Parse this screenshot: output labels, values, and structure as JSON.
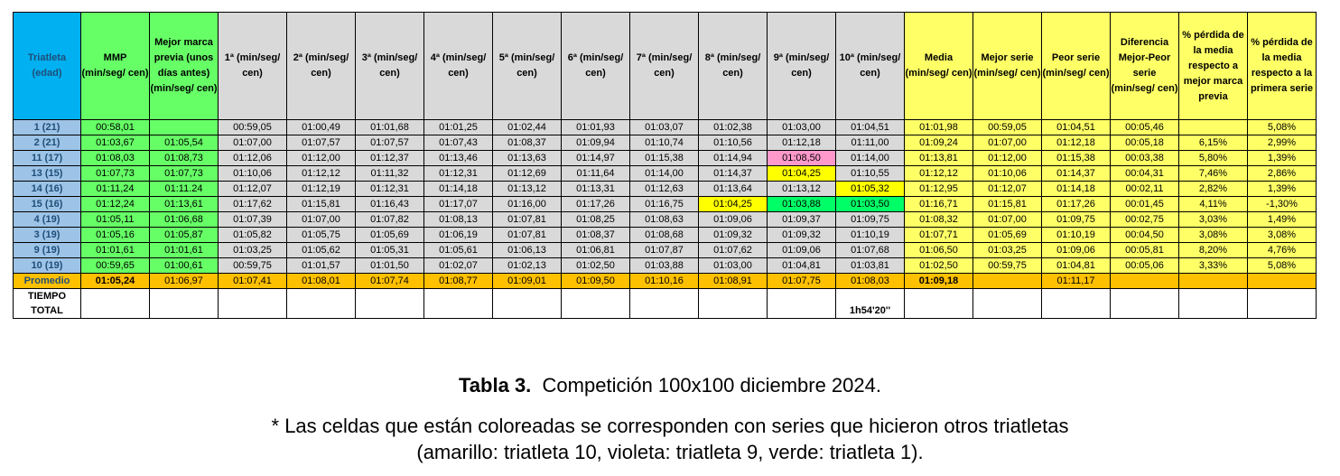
{
  "headers": [
    "Triatleta (edad)",
    "MMP (min/seg/ cen)",
    "Mejor marca previa (unos días antes) (min/seg/ cen)",
    "1ª (min/seg/ cen)",
    "2ª (min/seg/ cen)",
    "3ª (min/seg/ cen)",
    "4ª (min/seg/ cen)",
    "5ª (min/seg/ cen)",
    "6ª (min/seg/ cen)",
    "7ª (min/seg/ cen)",
    "8ª (min/seg/ cen)",
    "9ª (min/seg/ cen)",
    "10ª (min/seg/ cen)",
    "Media (min/seg/ cen)",
    "Mejor serie (min/seg/ cen)",
    "Peor serie (min/seg/ cen)",
    "Diferencia Mejor-Peor serie (min/seg/ cen)",
    "% pérdida de la media respecto a mejor marca previa",
    "% pérdida de la media respecto a la primera serie"
  ],
  "rows": [
    [
      "1 (21)",
      "00:58,01",
      "",
      "00:59,05",
      "01:00,49",
      "01:01,68",
      "01:01,25",
      "01:02,44",
      "01:01,93",
      "01:03,07",
      "01:02,38",
      "01:03,00",
      "01:04,51",
      "01:01,98",
      "00:59,05",
      "01:04,51",
      "00:05,46",
      "",
      "5,08%"
    ],
    [
      "2 (21)",
      "01:03,67",
      "01:05,54",
      "01:07,00",
      "01:07,57",
      "01:07,57",
      "01:07,43",
      "01:08,37",
      "01:09,94",
      "01:10,74",
      "01:10,56",
      "01:12,18",
      "01:11,00",
      "01:09,24",
      "01:07,00",
      "01:12,18",
      "00:05,18",
      "6,15%",
      "2,99%"
    ],
    [
      "11 (17)",
      "01:08,03",
      "01:08,73",
      "01:12,06",
      "01:12,00",
      "01:12,37",
      "01:13,46",
      "01:13,63",
      "01:14,97",
      "01:15,38",
      "01:14,94",
      "01:08,50",
      "01:14,00",
      "01:13,81",
      "01:12,00",
      "01:15,38",
      "00:03,38",
      "5,80%",
      "1,39%"
    ],
    [
      "13 (15)",
      "01:07,73",
      "01:07,73",
      "01:10,06",
      "01:12,12",
      "01:11,32",
      "01:12,31",
      "01:12,69",
      "01:11,64",
      "01:14,00",
      "01:14,37",
      "01:04,25",
      "01:10,55",
      "01:12,12",
      "01:10,06",
      "01:14,37",
      "00:04,31",
      "7,46%",
      "2,86%"
    ],
    [
      "14 (16)",
      "01:11,24",
      "01:11.24",
      "01:12,07",
      "01:12,19",
      "01:12,31",
      "01:14,18",
      "01:13,12",
      "01:13,31",
      "01:12,63",
      "01:13,64",
      "01:13,12",
      "01:05,32",
      "01:12,95",
      "01:12,07",
      "01:14,18",
      "00:02,11",
      "2,82%",
      "1,39%"
    ],
    [
      "15 (16)",
      "01:12,24",
      "01:13,61",
      "01:17,62",
      "01:15,81",
      "01:16,43",
      "01:17,07",
      "01:16,00",
      "01:17,26",
      "01:16,75",
      "01:04,25",
      "01:03,88",
      "01:03,50",
      "01:16,71",
      "01:15,81",
      "01:17,26",
      "00:01,45",
      "4,11%",
      "-1,30%"
    ],
    [
      "4 (19)",
      "01:05,11",
      "01:06,68",
      "01:07,39",
      "01:07,00",
      "01:07,82",
      "01:08,13",
      "01:07,81",
      "01:08,25",
      "01:08,63",
      "01:09,06",
      "01:09,37",
      "01:09,75",
      "01:08,32",
      "01:07,00",
      "01:09,75",
      "00:02,75",
      "3,03%",
      "1,49%"
    ],
    [
      "3 (19)",
      "01:05,16",
      "01:05,87",
      "01:05,82",
      "01:05,75",
      "01:05,69",
      "01:06,19",
      "01:07,81",
      "01:08,37",
      "01:08,68",
      "01:09,32",
      "01:09,32",
      "01:10,19",
      "01:07,71",
      "01:05,69",
      "01:10,19",
      "00:04,50",
      "3,08%",
      "3,08%"
    ],
    [
      "9 (19)",
      "01:01,61",
      "01:01,61",
      "01:03,25",
      "01:05,62",
      "01:05,31",
      "01:05,61",
      "01:06,13",
      "01:06,81",
      "01:07,87",
      "01:07,62",
      "01:09,06",
      "01:07,68",
      "01:06,50",
      "01:03,25",
      "01:09,06",
      "00:05,81",
      "8,20%",
      "4,76%"
    ],
    [
      "10 (19)",
      "00:59,65",
      "01:00,61",
      "00:59,75",
      "01:01,57",
      "01:01,50",
      "01:02,07",
      "01:02,13",
      "01:02,50",
      "01:03,88",
      "01:03,00",
      "01:04,81",
      "01:03,81",
      "01:02,50",
      "00:59,75",
      "01:04,81",
      "00:05,06",
      "3,33%",
      "5,08%"
    ]
  ],
  "highlights": [
    {
      "row": 2,
      "col": 11,
      "color": "#ff99cc"
    },
    {
      "row": 3,
      "col": 11,
      "color": "#ffff00"
    },
    {
      "row": 4,
      "col": 12,
      "color": "#ffff00"
    },
    {
      "row": 5,
      "col": 10,
      "color": "#ffff00"
    },
    {
      "row": 5,
      "col": 11,
      "color": "#00ff66"
    },
    {
      "row": 5,
      "col": 12,
      "color": "#00ff66"
    }
  ],
  "promedio": [
    "Promedio",
    "01:05,24",
    "01:06,97",
    "01:07,41",
    "01:08,01",
    "01:07,74",
    "01:08,77",
    "01:09,01",
    "01:09,50",
    "01:10,16",
    "01:08,91",
    "01:07,75",
    "01:08,03",
    "01:09,18",
    "",
    "01:11,17",
    "",
    "",
    ""
  ],
  "tiempo_total": {
    "label": "TIEMPO TOTAL",
    "value": "1h54'20''"
  },
  "caption": {
    "bold": "Tabla 3.",
    "text": "Competición 100x100 diciembre 2024."
  },
  "note": {
    "line1": "*  Las celdas que están coloreadas se corresponden con series que hicieron otros triatletas",
    "line2": "(amarillo: triatleta 10, violeta: triatleta 9, verde: triatleta 1)."
  },
  "colors": {
    "header_blue": "#00b0f0",
    "green": "#66ff66",
    "gray": "#d9d9d9",
    "yellow": "#ffff66",
    "promedio": "#ffc000",
    "row_label": "#9dc3e6"
  }
}
